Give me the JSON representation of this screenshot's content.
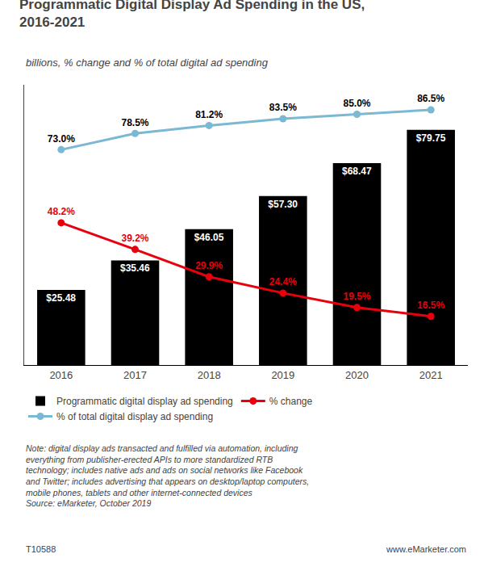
{
  "chart_data": {
    "type": "bar",
    "title": "Programmatic Digital Display Ad Spending in the US,\n2016-2021",
    "subtitle": "billions, % change and % of total digital ad spending",
    "categories": [
      "2016",
      "2017",
      "2018",
      "2019",
      "2020",
      "2021"
    ],
    "series": [
      {
        "name": "Programmatic digital display ad spending",
        "type": "bar",
        "color": "#000000",
        "values": [
          25.48,
          35.46,
          46.05,
          57.3,
          68.47,
          79.75
        ],
        "value_labels": [
          "$25.48",
          "$35.46",
          "$46.05",
          "$57.30",
          "$68.47",
          "$79.75"
        ]
      },
      {
        "name": "% change",
        "type": "line",
        "color": "#e8000d",
        "marker": "circle",
        "line_style": "solid",
        "values": [
          48.2,
          39.2,
          29.9,
          24.4,
          19.5,
          16.5
        ],
        "value_labels": [
          "48.2%",
          "39.2%",
          "29.9%",
          "24.4%",
          "19.5%",
          "16.5%"
        ]
      },
      {
        "name": "% of total digital display ad spending",
        "type": "line",
        "color": "#7ab8d4",
        "marker": "circle",
        "line_style": "solid",
        "values": [
          73.0,
          78.5,
          81.2,
          83.5,
          85.0,
          86.5
        ],
        "value_labels": [
          "73.0%",
          "78.5%",
          "81.2%",
          "83.5%",
          "85.0%",
          "86.5%"
        ]
      }
    ],
    "ylim": [
      0,
      95
    ],
    "tick_labels": "x",
    "grid": false,
    "legend": "bottom",
    "data_labels": true,
    "annotations": [
      "Note: digital display ads transacted and fulfilled via automation, including\neverything from publisher-erected APIs to more standardized RTB\ntechnology; includes native ads and ads on social networks like Facebook\nand Twitter; includes advertising that appears on desktop/laptop computers,\nmobile phones, tablets and other internet-connected devices\nSource: eMarketer, October 2019",
      "T10588",
      "www.eMarketer.com"
    ]
  }
}
